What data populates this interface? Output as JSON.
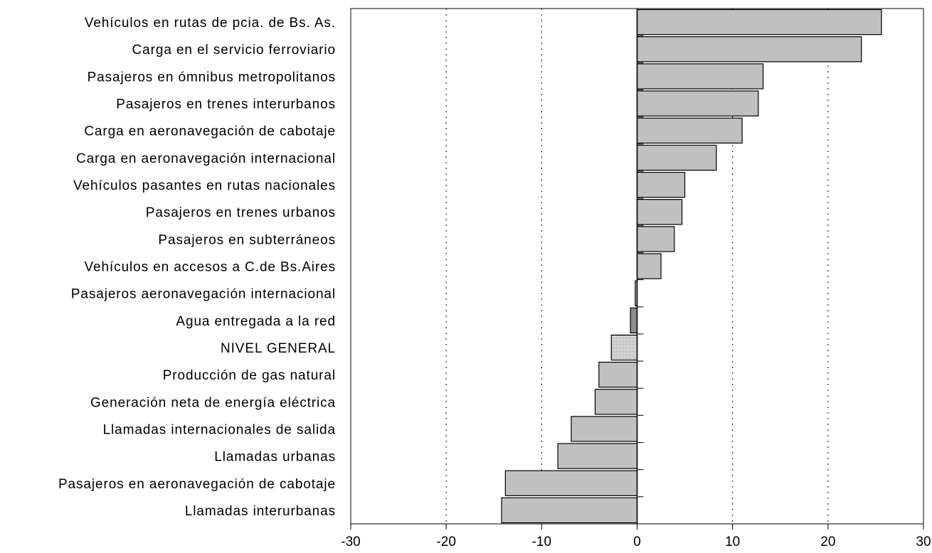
{
  "chart_data": {
    "type": "bar",
    "orientation": "horizontal",
    "categories": [
      "Vehículos en rutas de pcia. de Bs. As.",
      "Carga en el servicio ferroviario",
      "Pasajeros en ómnibus metropolitanos",
      "Pasajeros en trenes interurbanos",
      "Carga en aeronavegación de cabotaje",
      "Carga en aeronavegación internacional",
      "Vehículos pasantes en rutas nacionales",
      "Pasajeros en trenes urbanos",
      "Pasajeros en subterráneos",
      "Vehículos en accesos a C.de Bs.Aires",
      "Pasajeros aeronavegación internacional",
      "Agua entregada a la red",
      "NIVEL GENERAL",
      "Producción de gas natural",
      "Generación neta de energía eléctrica",
      "Llamadas internacionales de salida",
      "Llamadas urbanas",
      "Pasajeros en aeronavegación de cabotaje",
      "Llamadas interurbanas"
    ],
    "values": [
      25.6,
      23.5,
      13.2,
      12.7,
      11.0,
      8.3,
      5.0,
      4.7,
      3.9,
      2.5,
      -0.2,
      -0.7,
      -2.7,
      -4.0,
      -4.4,
      -6.9,
      -8.3,
      -13.8,
      -14.2
    ],
    "special_bars": {
      "NIVEL GENERAL": "hatched",
      "Agua entregada a la red": "dark"
    },
    "xlim": [
      -30,
      30
    ],
    "xticks": [
      "-30",
      "-20",
      "-10",
      "0",
      "10",
      "20",
      "30"
    ],
    "grid": "vertical dotted",
    "colors": {
      "bar": "#c0c0c0",
      "bar_dark": "#8c8c8c",
      "hatch": "#9a9a9a",
      "axis": "#000000"
    },
    "title": "",
    "xlabel": "",
    "ylabel": ""
  }
}
